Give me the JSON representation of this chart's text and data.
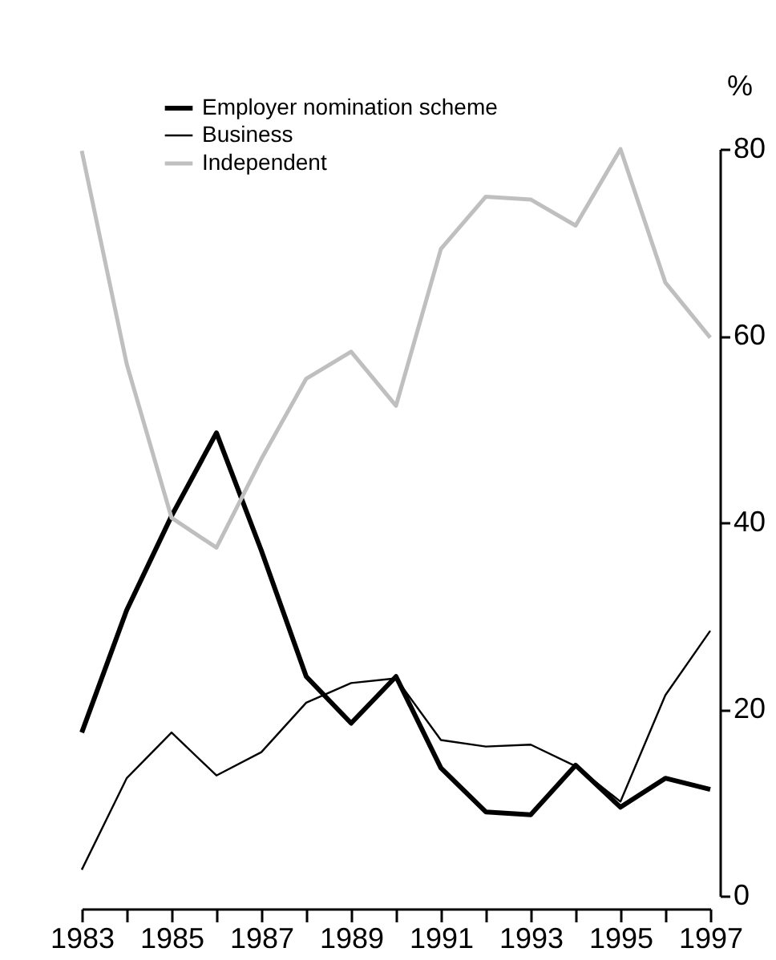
{
  "chart_data": {
    "type": "line",
    "ylabel": "%",
    "x": [
      1983,
      1984,
      1985,
      1986,
      1987,
      1988,
      1989,
      1990,
      1991,
      1992,
      1993,
      1994,
      1995,
      1996,
      1997
    ],
    "series": [
      {
        "name": "Employer nomination scheme",
        "color": "#000000",
        "values": [
          17.5,
          30.6,
          40.7,
          49.6,
          37,
          23.5,
          18.5,
          23.5,
          13.7,
          9.0,
          8.7,
          14.0,
          9.5,
          12.6,
          11.4
        ]
      },
      {
        "name": "Business",
        "color": "#000000",
        "values": [
          2.8,
          12.6,
          17.5,
          12.9,
          15.4,
          20.7,
          22.8,
          23.3,
          16.7,
          16.0,
          16.2,
          13.9,
          10.1,
          21.5,
          28.4
        ]
      },
      {
        "name": "Independent",
        "color": "#bfbfbf",
        "values": [
          79.8,
          57.0,
          40.5,
          37.3,
          46.8,
          55.4,
          58.3,
          52.5,
          69.3,
          74.9,
          74.6,
          71.8,
          80,
          65.7,
          59.8
        ]
      }
    ],
    "xlim": [
      1983,
      1997
    ],
    "xticks": [
      1983,
      {
        "value": 1984,
        "label": null
      },
      1985,
      {
        "value": 1986,
        "label": null
      },
      1987,
      {
        "value": 1988,
        "label": null
      },
      1989,
      {
        "value": 1990,
        "label": null
      },
      1991,
      {
        "value": 1992,
        "label": null
      },
      1993,
      {
        "value": 1994,
        "label": null
      },
      1995,
      {
        "value": 1996,
        "label": null
      },
      1997
    ],
    "ylim": [
      0,
      80
    ],
    "yticks": [
      0,
      20,
      40,
      60,
      80
    ],
    "grid": false,
    "legend": "top left",
    "marker": "none",
    "line_style": "solid"
  }
}
